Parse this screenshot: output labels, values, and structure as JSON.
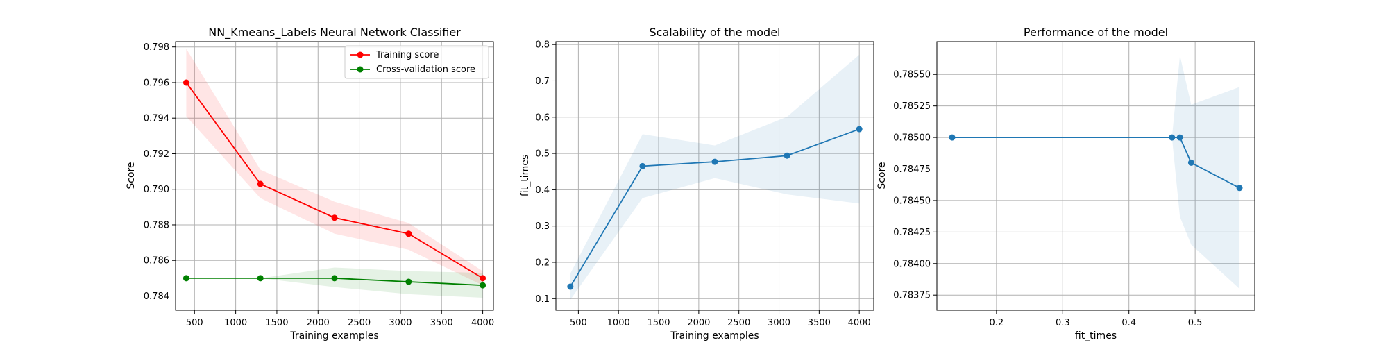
{
  "chart_data": [
    {
      "type": "line",
      "title": "NN_Kmeans_Labels Neural Network Classifier",
      "xlabel": "Training examples",
      "ylabel": "Score",
      "xlim": [
        270,
        4130
      ],
      "ylim": [
        0.7832,
        0.7983
      ],
      "xticks": [
        500,
        1000,
        1500,
        2000,
        2500,
        3000,
        3500,
        4000
      ],
      "xtick_labels": [
        "500",
        "1000",
        "1500",
        "2000",
        "2500",
        "3000",
        "3500",
        "4000"
      ],
      "yticks": [
        0.784,
        0.786,
        0.788,
        0.79,
        0.792,
        0.794,
        0.796,
        0.798
      ],
      "ytick_labels": [
        "0.784",
        "0.786",
        "0.788",
        "0.790",
        "0.792",
        "0.794",
        "0.796",
        "0.798"
      ],
      "grid": true,
      "legend": "top-right",
      "x": [
        400,
        1300,
        2200,
        3100,
        4000
      ],
      "series": [
        {
          "name": "Training score",
          "color": "#ff0000",
          "values": [
            0.796,
            0.7903,
            0.7884,
            0.7875,
            0.785
          ],
          "band_low": [
            0.7941,
            0.7895,
            0.7875,
            0.7866,
            0.7846
          ],
          "band_high": [
            0.7979,
            0.7911,
            0.7893,
            0.7881,
            0.7854
          ]
        },
        {
          "name": "Cross-validation score",
          "color": "#008000",
          "values": [
            0.785,
            0.785,
            0.785,
            0.7848,
            0.7846
          ],
          "band_low": [
            0.785,
            0.785,
            0.7845,
            0.7841,
            0.7839
          ],
          "band_high": [
            0.785,
            0.785,
            0.7856,
            0.7854,
            0.7853
          ]
        }
      ]
    },
    {
      "type": "line",
      "title": "Scalability of the model",
      "xlabel": "Training examples",
      "ylabel": "fit_times",
      "xlim": [
        220,
        4180
      ],
      "ylim": [
        0.068,
        0.808
      ],
      "xticks": [
        500,
        1000,
        1500,
        2000,
        2500,
        3000,
        3500,
        4000
      ],
      "xtick_labels": [
        "500",
        "1000",
        "1500",
        "2000",
        "2500",
        "3000",
        "3500",
        "4000"
      ],
      "yticks": [
        0.1,
        0.2,
        0.3,
        0.4,
        0.5,
        0.6,
        0.7,
        0.8
      ],
      "ytick_labels": [
        "0.1",
        "0.2",
        "0.3",
        "0.4",
        "0.5",
        "0.6",
        "0.7",
        "0.8"
      ],
      "grid": true,
      "x": [
        400,
        1300,
        2200,
        3100,
        4000
      ],
      "series": [
        {
          "color": "#1f77b4",
          "values": [
            0.133,
            0.465,
            0.477,
            0.494,
            0.567
          ],
          "band_low": [
            0.097,
            0.377,
            0.432,
            0.387,
            0.362
          ],
          "band_high": [
            0.169,
            0.553,
            0.522,
            0.601,
            0.772
          ]
        }
      ]
    },
    {
      "type": "line",
      "title": "Performance of the model",
      "xlabel": "fit_times",
      "ylabel": "Score",
      "xlim": [
        0.11,
        0.59
      ],
      "ylim": [
        0.78363,
        0.78576
      ],
      "xticks": [
        0.2,
        0.3,
        0.4,
        0.5
      ],
      "xtick_labels": [
        "0.2",
        "0.3",
        "0.4",
        "0.5"
      ],
      "yticks": [
        0.78375,
        0.784,
        0.78425,
        0.7845,
        0.78475,
        0.785,
        0.78525,
        0.7855
      ],
      "ytick_labels": [
        "0.78375",
        "0.78400",
        "0.78425",
        "0.78450",
        "0.78475",
        "0.78500",
        "0.78525",
        "0.78550"
      ],
      "grid": true,
      "x": [
        0.133,
        0.465,
        0.477,
        0.494,
        0.567
      ],
      "series": [
        {
          "color": "#1f77b4",
          "values": [
            0.785,
            0.785,
            0.785,
            0.7848,
            0.7846
          ],
          "band_low": [
            0.785,
            0.785,
            0.78437,
            0.78415,
            0.7838
          ],
          "band_high": [
            0.785,
            0.785,
            0.78565,
            0.78526,
            0.7854
          ]
        }
      ]
    }
  ]
}
